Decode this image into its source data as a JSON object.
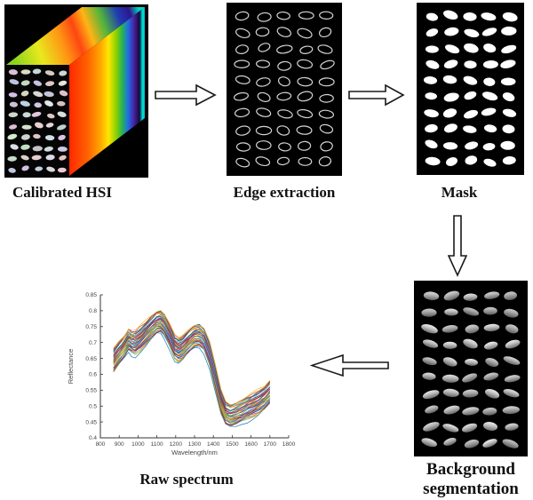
{
  "labels": {
    "calibrated_hsi": "Calibrated HSI",
    "edge_extraction": "Edge extraction",
    "mask": "Mask",
    "background_line1": "Background",
    "background_line2": "segmentation",
    "raw_spectrum": "Raw spectrum"
  },
  "panels": {
    "hsi_front": {
      "rows": 10,
      "cols": 5,
      "seed": 11
    },
    "edge": {
      "rows": 10,
      "cols": 5,
      "seed": 21
    },
    "mask": {
      "rows": 10,
      "cols": 5,
      "seed": 31
    },
    "segmented": {
      "rows": 10,
      "cols": 5,
      "seed": 41
    }
  },
  "chart_data": {
    "type": "line",
    "title": "",
    "xlabel": "Wavelength/nm",
    "ylabel": "Reflectance",
    "xlim": [
      800,
      1800
    ],
    "ylim": [
      0.4,
      0.85
    ],
    "xticks": [
      "800",
      "900",
      "1000",
      "1100",
      "1200",
      "1300",
      "1400",
      "1500",
      "1600",
      "1700",
      "1800"
    ],
    "yticks": [
      "0.4",
      "0.45",
      "0.5",
      "0.55",
      "0.6",
      "0.65",
      "0.7",
      "0.75",
      "0.8",
      "0.85"
    ],
    "grid": false,
    "legend": "none",
    "n_lines": 45,
    "band_halfwidth": 0.036,
    "palette": [
      "#0072BD",
      "#D95319",
      "#EDB120",
      "#7E2F8E",
      "#77AC30",
      "#4DBEEE",
      "#A2142F"
    ],
    "x": [
      870,
      900,
      930,
      950,
      965,
      985,
      1010,
      1040,
      1070,
      1100,
      1120,
      1140,
      1170,
      1195,
      1215,
      1240,
      1270,
      1300,
      1325,
      1350,
      1380,
      1410,
      1440,
      1465,
      1490,
      1520,
      1550,
      1580,
      1610,
      1640,
      1670,
      1700
    ],
    "mean": [
      0.645,
      0.668,
      0.69,
      0.708,
      0.7,
      0.697,
      0.71,
      0.728,
      0.748,
      0.764,
      0.766,
      0.752,
      0.718,
      0.685,
      0.676,
      0.686,
      0.705,
      0.72,
      0.721,
      0.708,
      0.662,
      0.59,
      0.515,
      0.478,
      0.47,
      0.475,
      0.483,
      0.492,
      0.502,
      0.512,
      0.525,
      0.545
    ]
  }
}
